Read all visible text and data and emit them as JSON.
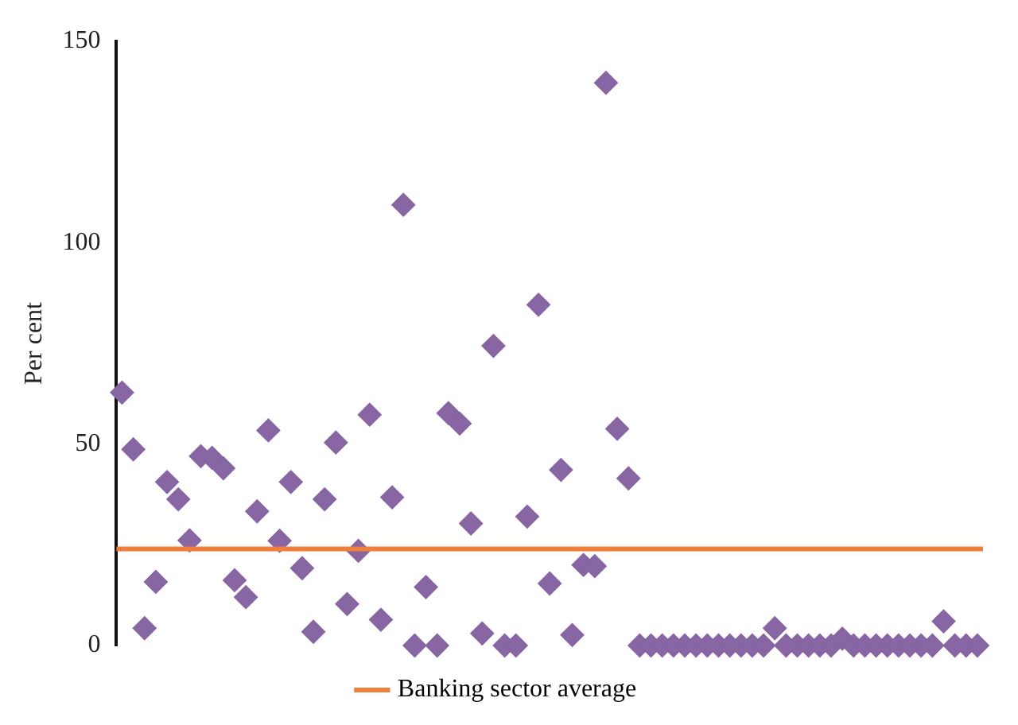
{
  "chart_data": {
    "type": "scatter",
    "ylabel": "Per cent",
    "categories": [
      null,
      null,
      null,
      null,
      null,
      null,
      null,
      null,
      null,
      null,
      null,
      null,
      null,
      null,
      null,
      null,
      null,
      null,
      null,
      null,
      null,
      null,
      null,
      null,
      null,
      null,
      null,
      null,
      null,
      null,
      null,
      null,
      null,
      null,
      null,
      null,
      null,
      null,
      null,
      null,
      null,
      null,
      null,
      null,
      null,
      null,
      null,
      null,
      null,
      null,
      null,
      null,
      null,
      null,
      null,
      null,
      null,
      null,
      null,
      null,
      null,
      null,
      null,
      null,
      null,
      null,
      null,
      null,
      null,
      null,
      null,
      null,
      null,
      null,
      null,
      null,
      null
    ],
    "series": [
      {
        "color": "#8766a3",
        "values": [
          62.8,
          48.7,
          4.3,
          15.8,
          40.6,
          36.3,
          26.1,
          47,
          46.6,
          44,
          16.2,
          12,
          33.3,
          53.4,
          26,
          40.6,
          19.2,
          3.4,
          36.3,
          50.4,
          10.3,
          23.5,
          57.3,
          6.4,
          36.8,
          109.4,
          0,
          14.5,
          0,
          57.7,
          55.1,
          30.3,
          3,
          74.4,
          0,
          0,
          32,
          84.6,
          15.4,
          43.6,
          2.6,
          20,
          19.7,
          139.7,
          53.8,
          41.5,
          0,
          0,
          0,
          0,
          0,
          0,
          0,
          0,
          0,
          0,
          0,
          0,
          4.3,
          0,
          0,
          0,
          0,
          0,
          1.7,
          0,
          0,
          0,
          0,
          0,
          0,
          0,
          0,
          6,
          0,
          0,
          0
        ]
      }
    ],
    "ylim": [
      0,
      150
    ],
    "yticks": [
      0,
      50,
      100,
      150
    ],
    "grid": false,
    "marker": "diamond",
    "legend": "bottom",
    "ref_lines": [
      {
        "axis": "y",
        "value": 24,
        "label": "Banking sector average",
        "color": "#f07f3c"
      }
    ]
  }
}
